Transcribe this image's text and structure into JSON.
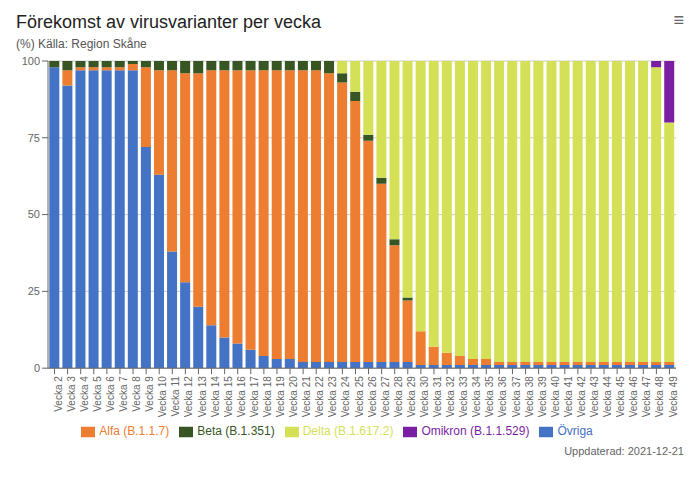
{
  "chart_data": {
    "type": "bar",
    "title": "Förekomst av virusvarianter per vecka",
    "subtitle": "(%) Källa: Region Skåne",
    "annotations": [
      "Uppdaterad: 2021-12-21",
      "≡"
    ],
    "categories": [
      "Vecka 2",
      "Vecka 3",
      "Vecka 4",
      "Vecka 5",
      "Vecka 6",
      "Vecka 7",
      "Vecka 8",
      "Vecka 9",
      "Vecka 10",
      "Vecka 11",
      "Vecka 12",
      "Vecka 13",
      "Vecka 14",
      "Vecka 15",
      "Vecka 16",
      "Vecka 17",
      "Vecka 18",
      "Vecka 19",
      "Vecka 20",
      "Vecka 21",
      "Vecka 22",
      "Vecka 23",
      "Vecka 24",
      "Vecka 25",
      "Vecka 26",
      "Vecka 27",
      "Vecka 28",
      "Vecka 29",
      "Vecka 30",
      "Vecka 31",
      "Vecka 32",
      "Vecka 33",
      "Vecka 34",
      "Vecka 35",
      "Vecka 36",
      "Vecka 37",
      "Vecka 38",
      "Vecka 39",
      "Vecka 40",
      "Vecka 41",
      "Vecka 42",
      "Vecka 43",
      "Vecka 44",
      "Vecka 45",
      "Vecka 46",
      "Vecka 47",
      "Vecka 48",
      "Vecka 49"
    ],
    "series": [
      {
        "name": "Övriga",
        "color": "#4472c4",
        "values": [
          98,
          92,
          97,
          97,
          97,
          97,
          97,
          72,
          63,
          38,
          28,
          20,
          14,
          10,
          8,
          6,
          4,
          3,
          3,
          2,
          2,
          2,
          2,
          2,
          2,
          2,
          2,
          2,
          1,
          1,
          1,
          1,
          1,
          1,
          1,
          1,
          1,
          1,
          1,
          1,
          1,
          1,
          1,
          1,
          1,
          1,
          1,
          1
        ]
      },
      {
        "name": "Alfa (B.1.1.7)",
        "color": "#ed7d31",
        "values": [
          0,
          5,
          1,
          1,
          1,
          1,
          2,
          26,
          34,
          59,
          68,
          76,
          83,
          87,
          89,
          91,
          93,
          94,
          94,
          95,
          95,
          94,
          91,
          85,
          72,
          58,
          38,
          20,
          11,
          6,
          4,
          3,
          2,
          2,
          1,
          1,
          1,
          1,
          1,
          1,
          1,
          1,
          1,
          1,
          1,
          1,
          1,
          1
        ]
      },
      {
        "name": "Beta (B.1.351)",
        "color": "#375623",
        "values": [
          2,
          3,
          2,
          2,
          2,
          2,
          1,
          2,
          3,
          3,
          4,
          4,
          3,
          3,
          3,
          3,
          3,
          3,
          3,
          3,
          3,
          4,
          3,
          3,
          2,
          2,
          2,
          1,
          0,
          0,
          0,
          0,
          0,
          0,
          0,
          0,
          0,
          0,
          0,
          0,
          0,
          0,
          0,
          0,
          0,
          0,
          0,
          0
        ]
      },
      {
        "name": "Delta (B.1.617.2)",
        "color": "#d4e157",
        "values": [
          0,
          0,
          0,
          0,
          0,
          0,
          0,
          0,
          0,
          0,
          0,
          0,
          0,
          0,
          0,
          0,
          0,
          0,
          0,
          0,
          0,
          0,
          4,
          10,
          24,
          38,
          58,
          77,
          88,
          93,
          95,
          96,
          97,
          97,
          98,
          98,
          98,
          98,
          98,
          98,
          98,
          98,
          98,
          98,
          98,
          98,
          96,
          78
        ]
      },
      {
        "name": "Omikron (B.1.1.529)",
        "color": "#7b1fa2",
        "values": [
          0,
          0,
          0,
          0,
          0,
          0,
          0,
          0,
          0,
          0,
          0,
          0,
          0,
          0,
          0,
          0,
          0,
          0,
          0,
          0,
          0,
          0,
          0,
          0,
          0,
          0,
          0,
          0,
          0,
          0,
          0,
          0,
          0,
          0,
          0,
          0,
          0,
          0,
          0,
          0,
          0,
          0,
          0,
          0,
          0,
          0,
          2,
          20
        ]
      }
    ],
    "ylim": [
      0,
      100
    ],
    "yticks": [
      0,
      25,
      50,
      75,
      100
    ],
    "grid": true,
    "stacked": true,
    "legend": "bottom"
  }
}
